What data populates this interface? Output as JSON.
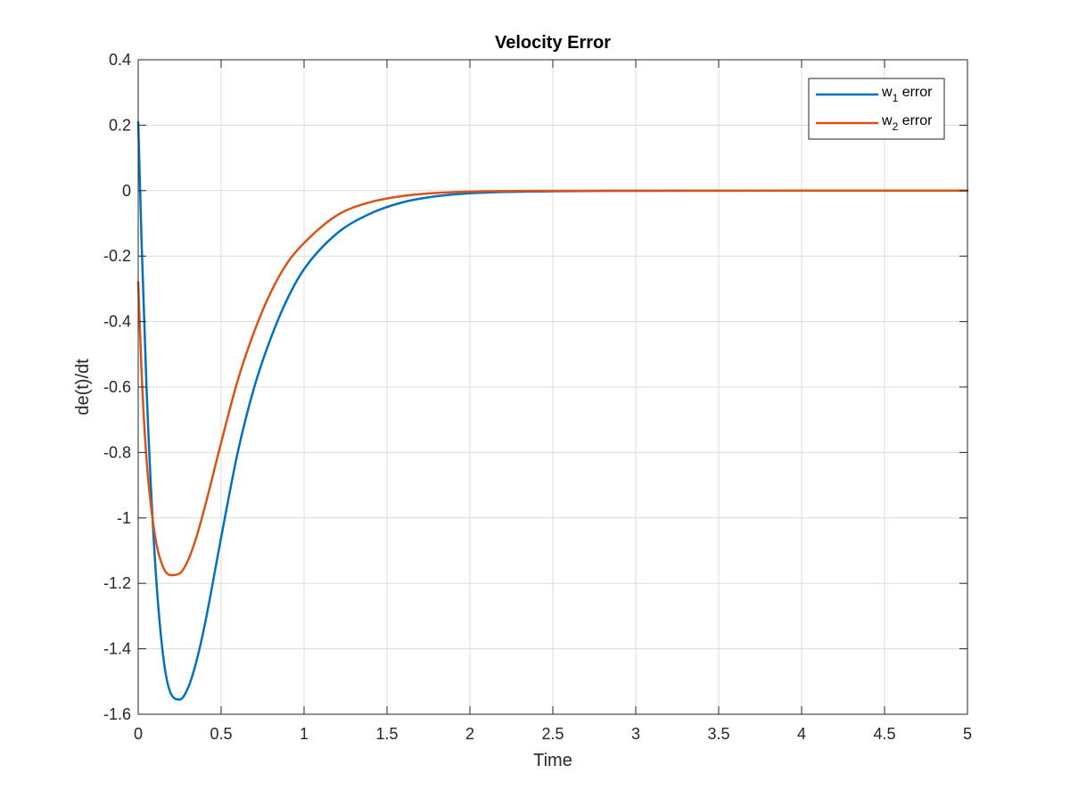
{
  "chart_data": {
    "type": "line",
    "title": "Velocity Error",
    "xlabel": "Time",
    "ylabel": "de(t)/dt",
    "xlim": [
      0,
      5
    ],
    "ylim": [
      -1.6,
      0.4
    ],
    "xticks": [
      0,
      0.5,
      1,
      1.5,
      2,
      2.5,
      3,
      3.5,
      4,
      4.5,
      5
    ],
    "xtick_labels": [
      "0",
      "0.5",
      "1",
      "1.5",
      "2",
      "2.5",
      "3",
      "3.5",
      "4",
      "4.5",
      "5"
    ],
    "yticks": [
      -1.6,
      -1.4,
      -1.2,
      -1,
      -0.8,
      -0.6,
      -0.4,
      -0.2,
      0,
      0.2,
      0.4
    ],
    "ytick_labels": [
      "-1.6",
      "-1.4",
      "-1.2",
      "-1",
      "-0.8",
      "-0.6",
      "-0.4",
      "-0.2",
      "0",
      "0.2",
      "0.4"
    ],
    "grid": true,
    "legend_position": "top-right",
    "series": [
      {
        "name": "w_1 error",
        "name_base": "w",
        "name_sub": "1",
        "name_suffix": " error",
        "color": "#0072BD",
        "x": [
          0,
          0.02,
          0.05,
          0.1,
          0.15,
          0.2,
          0.25,
          0.3,
          0.35,
          0.4,
          0.5,
          0.6,
          0.7,
          0.8,
          0.9,
          1.0,
          1.2,
          1.4,
          1.6,
          1.8,
          2.0,
          2.5,
          3.0,
          3.5,
          4.0,
          4.5,
          5.0
        ],
        "y": [
          0.21,
          -0.15,
          -0.6,
          -1.12,
          -1.42,
          -1.54,
          -1.555,
          -1.52,
          -1.44,
          -1.33,
          -1.06,
          -0.8,
          -0.6,
          -0.45,
          -0.33,
          -0.24,
          -0.13,
          -0.07,
          -0.035,
          -0.017,
          -0.008,
          -0.002,
          -0.0005,
          -0.0001,
          0,
          0,
          0
        ]
      },
      {
        "name": "w_2 error",
        "name_base": "w",
        "name_sub": "2",
        "name_suffix": " error",
        "color": "#D95319",
        "x": [
          0,
          0.02,
          0.05,
          0.1,
          0.15,
          0.2,
          0.25,
          0.3,
          0.35,
          0.4,
          0.5,
          0.6,
          0.7,
          0.8,
          0.9,
          1.0,
          1.2,
          1.4,
          1.6,
          1.8,
          2.0,
          2.5,
          3.0,
          3.5,
          4.0,
          4.5,
          5.0
        ],
        "y": [
          -0.28,
          -0.55,
          -0.82,
          -1.05,
          -1.15,
          -1.175,
          -1.17,
          -1.13,
          -1.06,
          -0.97,
          -0.77,
          -0.58,
          -0.43,
          -0.31,
          -0.22,
          -0.16,
          -0.075,
          -0.035,
          -0.016,
          -0.007,
          -0.003,
          -0.0005,
          -0.0001,
          0,
          0,
          0,
          0
        ]
      }
    ]
  }
}
